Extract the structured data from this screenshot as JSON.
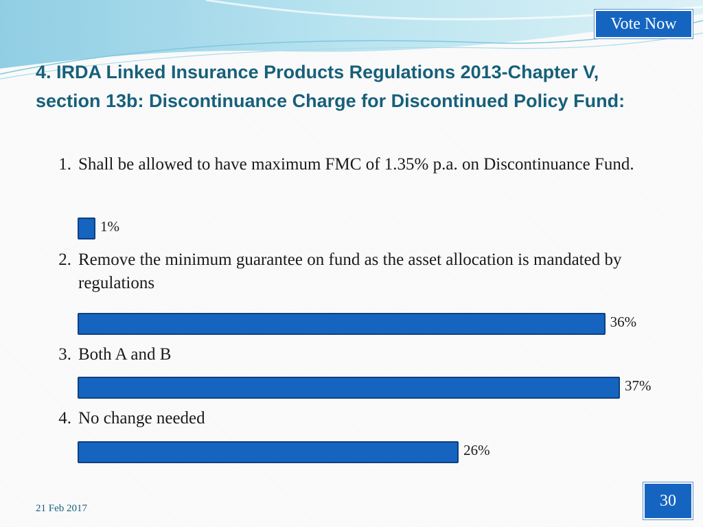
{
  "vote_button": "Vote Now",
  "title": "4. IRDA Linked Insurance Products Regulations 2013-Chapter V, section 13b: Discontinuance Charge for Discontinued Policy Fund:",
  "options": [
    {
      "num": "1.",
      "text": "Shall be allowed to have maximum FMC of 1.35% p.a. on Discontinuance Fund.",
      "percent_label": "1%"
    },
    {
      "num": "2.",
      "text": "Remove the minimum guarantee on fund as the asset allocation is mandated by regulations",
      "percent_label": "36%"
    },
    {
      "num": "3.",
      "text": "Both A and B",
      "percent_label": "37%"
    },
    {
      "num": "4.",
      "text": "No change needed",
      "percent_label": "26%"
    }
  ],
  "chart_data": {
    "type": "bar",
    "orientation": "horizontal",
    "categories": [
      "1.",
      "2.",
      "3.",
      "4."
    ],
    "values": [
      1,
      36,
      37,
      26
    ],
    "value_unit": "%",
    "grid": false
  },
  "footer": {
    "date": "21 Feb 2017",
    "page_number": "30"
  },
  "colors": {
    "bar_fill": "#1565c0",
    "bar_border": "#0d3f80",
    "title": "#17607a",
    "button": "#1565c0"
  }
}
